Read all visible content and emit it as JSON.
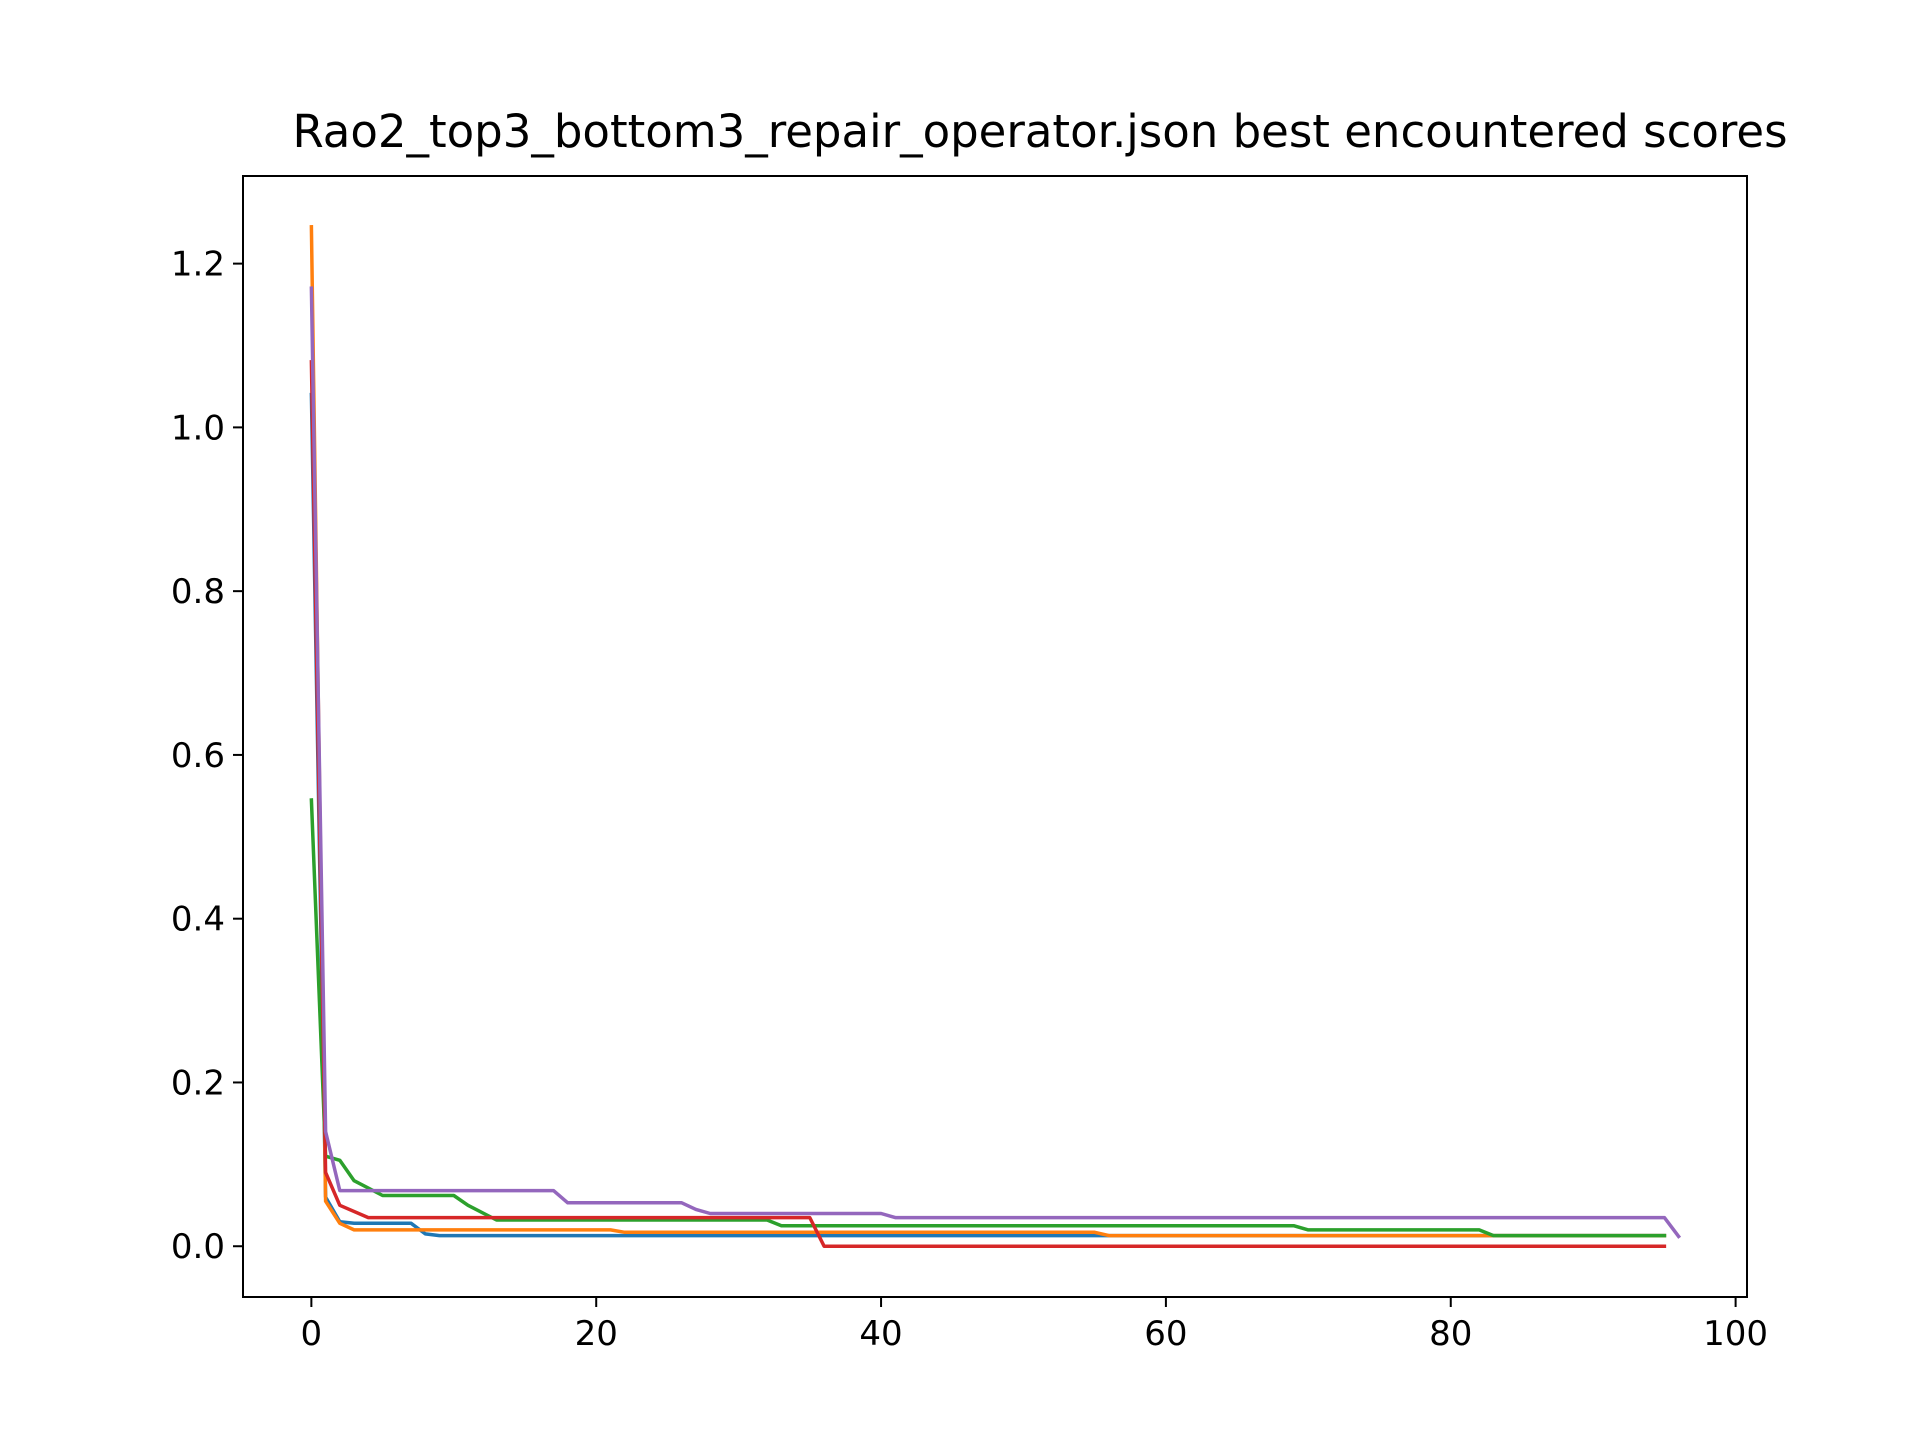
{
  "chart_data": {
    "type": "line",
    "title": "Rao2_top3_bottom3_repair_operator.json best encountered scores",
    "xlabel": "",
    "ylabel": "",
    "xlim": [
      -4.8,
      100.8
    ],
    "ylim": [
      -0.062,
      1.307
    ],
    "xticks": [
      0,
      20,
      40,
      60,
      80,
      100
    ],
    "xtick_labels": [
      "0",
      "20",
      "40",
      "60",
      "80",
      "100"
    ],
    "yticks": [
      0.0,
      0.2,
      0.4,
      0.6,
      0.8,
      1.0,
      1.2
    ],
    "ytick_labels": [
      "0.0",
      "0.2",
      "0.4",
      "0.6",
      "0.8",
      "1.0",
      "1.2"
    ],
    "grid": false,
    "legend": "none",
    "series": [
      {
        "color": "#1f77b4",
        "points": [
          [
            0,
            1.04
          ],
          [
            1,
            0.06
          ],
          [
            2,
            0.03
          ],
          [
            3,
            0.028
          ],
          [
            7,
            0.028
          ],
          [
            8,
            0.015
          ],
          [
            9,
            0.013
          ],
          [
            93,
            0.013
          ],
          [
            95,
            0.013
          ]
        ]
      },
      {
        "color": "#ff7f0e",
        "points": [
          [
            0,
            1.245
          ],
          [
            1,
            0.055
          ],
          [
            2,
            0.028
          ],
          [
            3,
            0.02
          ],
          [
            5,
            0.02
          ],
          [
            21,
            0.02
          ],
          [
            22,
            0.017
          ],
          [
            55,
            0.017
          ],
          [
            56,
            0.013
          ],
          [
            95,
            0.013
          ]
        ]
      },
      {
        "color": "#2ca02c",
        "points": [
          [
            0,
            0.545
          ],
          [
            1,
            0.11
          ],
          [
            2,
            0.105
          ],
          [
            3,
            0.08
          ],
          [
            5,
            0.062
          ],
          [
            10,
            0.062
          ],
          [
            11,
            0.05
          ],
          [
            13,
            0.032
          ],
          [
            32,
            0.032
          ],
          [
            33,
            0.025
          ],
          [
            69,
            0.025
          ],
          [
            70,
            0.02
          ],
          [
            82,
            0.02
          ],
          [
            83,
            0.013
          ],
          [
            95,
            0.013
          ]
        ]
      },
      {
        "color": "#d62728",
        "points": [
          [
            0,
            1.08
          ],
          [
            1,
            0.09
          ],
          [
            2,
            0.05
          ],
          [
            4,
            0.035
          ],
          [
            35,
            0.035
          ],
          [
            36,
            0.0
          ],
          [
            95,
            0.0
          ]
        ]
      },
      {
        "color": "#9467bd",
        "points": [
          [
            0,
            1.17
          ],
          [
            1,
            0.14
          ],
          [
            2,
            0.068
          ],
          [
            17,
            0.068
          ],
          [
            18,
            0.053
          ],
          [
            26,
            0.053
          ],
          [
            27,
            0.045
          ],
          [
            28,
            0.04
          ],
          [
            40,
            0.04
          ],
          [
            41,
            0.035
          ],
          [
            95,
            0.035
          ],
          [
            96,
            0.012
          ]
        ]
      }
    ]
  }
}
